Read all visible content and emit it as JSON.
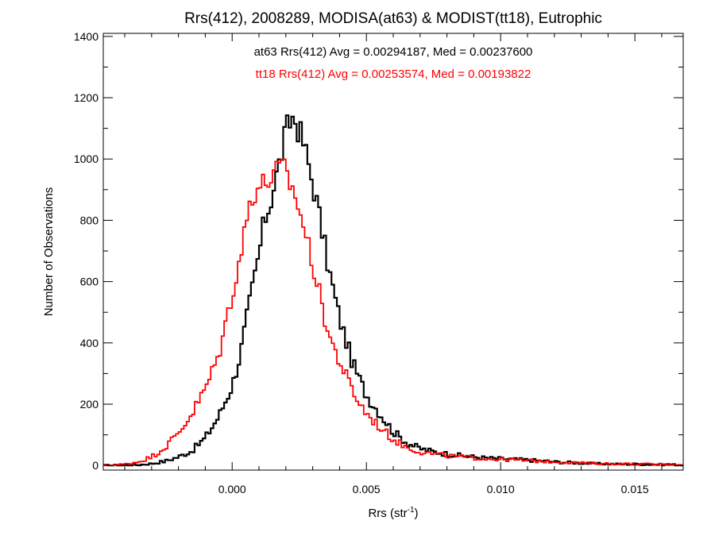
{
  "chart_data": {
    "type": "line",
    "style": "histogram-step",
    "title": "Rrs(412), 2008289, MODISA(at63) & MODIST(tt18), Eutrophic",
    "xlabel": {
      "base": "Rrs (str",
      "sup": "-1",
      "close": ")"
    },
    "ylabel": "Number of Observations",
    "xlim": [
      -0.0048,
      0.0168
    ],
    "ylim": [
      -15,
      1410
    ],
    "xticks": [
      0.0,
      0.005,
      0.01,
      0.015
    ],
    "xtick_labels": [
      "0.000",
      "0.005",
      "0.010",
      "0.015"
    ],
    "yticks": [
      0,
      200,
      400,
      600,
      800,
      1000,
      1200,
      1400
    ],
    "ytick_labels": [
      "0",
      "200",
      "400",
      "600",
      "800",
      "1000",
      "1200",
      "1400"
    ],
    "annotations": [
      {
        "text": "at63 Rrs(412) Avg = 0.00294187, Med = 0.00237600",
        "color": "#000000"
      },
      {
        "text": "tt18 Rrs(412) Avg = 0.00253574, Med = 0.00193822",
        "color": "#ff0000"
      }
    ],
    "bin_width": 0.0001,
    "series": [
      {
        "color": "#000000",
        "points": [
          [
            -0.0048,
            0
          ],
          [
            -0.0045,
            0
          ],
          [
            -0.004,
            1
          ],
          [
            -0.0035,
            2
          ],
          [
            -0.003,
            6
          ],
          [
            -0.0025,
            14
          ],
          [
            -0.002,
            28
          ],
          [
            -0.0015,
            48
          ],
          [
            -0.001,
            90
          ],
          [
            -0.0005,
            160
          ],
          [
            0.0,
            260
          ],
          [
            0.0003,
            360
          ],
          [
            0.0005,
            460
          ],
          [
            0.0008,
            600
          ],
          [
            0.001,
            690
          ],
          [
            0.0012,
            800
          ],
          [
            0.0014,
            850
          ],
          [
            0.0016,
            930
          ],
          [
            0.0018,
            1000
          ],
          [
            0.002,
            1090
          ],
          [
            0.0022,
            1130
          ],
          [
            0.0023,
            1140
          ],
          [
            0.0024,
            1110
          ],
          [
            0.0026,
            1070
          ],
          [
            0.0028,
            1000
          ],
          [
            0.003,
            920
          ],
          [
            0.0032,
            840
          ],
          [
            0.0034,
            740
          ],
          [
            0.0036,
            640
          ],
          [
            0.0038,
            560
          ],
          [
            0.004,
            480
          ],
          [
            0.0042,
            420
          ],
          [
            0.0045,
            330
          ],
          [
            0.0048,
            270
          ],
          [
            0.005,
            230
          ],
          [
            0.0055,
            170
          ],
          [
            0.006,
            110
          ],
          [
            0.0065,
            75
          ],
          [
            0.007,
            55
          ],
          [
            0.0075,
            45
          ],
          [
            0.008,
            38
          ],
          [
            0.0085,
            32
          ],
          [
            0.009,
            28
          ],
          [
            0.0095,
            24
          ],
          [
            0.01,
            22
          ],
          [
            0.0105,
            20
          ],
          [
            0.011,
            18
          ],
          [
            0.0115,
            15
          ],
          [
            0.012,
            12
          ],
          [
            0.0125,
            10
          ],
          [
            0.013,
            8
          ],
          [
            0.0135,
            6
          ],
          [
            0.014,
            5
          ],
          [
            0.015,
            4
          ],
          [
            0.016,
            3
          ],
          [
            0.0168,
            2
          ]
        ]
      },
      {
        "color": "#ff0000",
        "points": [
          [
            -0.0048,
            0
          ],
          [
            -0.0045,
            1
          ],
          [
            -0.004,
            4
          ],
          [
            -0.0035,
            12
          ],
          [
            -0.003,
            28
          ],
          [
            -0.0025,
            60
          ],
          [
            -0.002,
            105
          ],
          [
            -0.0015,
            170
          ],
          [
            -0.001,
            250
          ],
          [
            -0.0005,
            360
          ],
          [
            -0.0002,
            480
          ],
          [
            0.0,
            560
          ],
          [
            0.0003,
            680
          ],
          [
            0.0005,
            780
          ],
          [
            0.0007,
            880
          ],
          [
            0.001,
            910
          ],
          [
            0.0012,
            920
          ],
          [
            0.0014,
            935
          ],
          [
            0.0016,
            950
          ],
          [
            0.0018,
            970
          ],
          [
            0.002,
            960
          ],
          [
            0.0022,
            910
          ],
          [
            0.0024,
            870
          ],
          [
            0.0026,
            800
          ],
          [
            0.0028,
            730
          ],
          [
            0.003,
            660
          ],
          [
            0.0032,
            580
          ],
          [
            0.0034,
            500
          ],
          [
            0.0036,
            430
          ],
          [
            0.0038,
            380
          ],
          [
            0.004,
            340
          ],
          [
            0.0042,
            300
          ],
          [
            0.0045,
            240
          ],
          [
            0.0048,
            195
          ],
          [
            0.005,
            170
          ],
          [
            0.0055,
            125
          ],
          [
            0.006,
            85
          ],
          [
            0.0065,
            60
          ],
          [
            0.007,
            45
          ],
          [
            0.0075,
            38
          ],
          [
            0.008,
            32
          ],
          [
            0.0085,
            28
          ],
          [
            0.009,
            25
          ],
          [
            0.0095,
            22
          ],
          [
            0.01,
            20
          ],
          [
            0.0105,
            18
          ],
          [
            0.011,
            16
          ],
          [
            0.0115,
            14
          ],
          [
            0.012,
            12
          ],
          [
            0.0125,
            10
          ],
          [
            0.013,
            8
          ],
          [
            0.0135,
            7
          ],
          [
            0.014,
            6
          ],
          [
            0.015,
            5
          ],
          [
            0.016,
            4
          ],
          [
            0.0168,
            3
          ]
        ]
      }
    ]
  }
}
